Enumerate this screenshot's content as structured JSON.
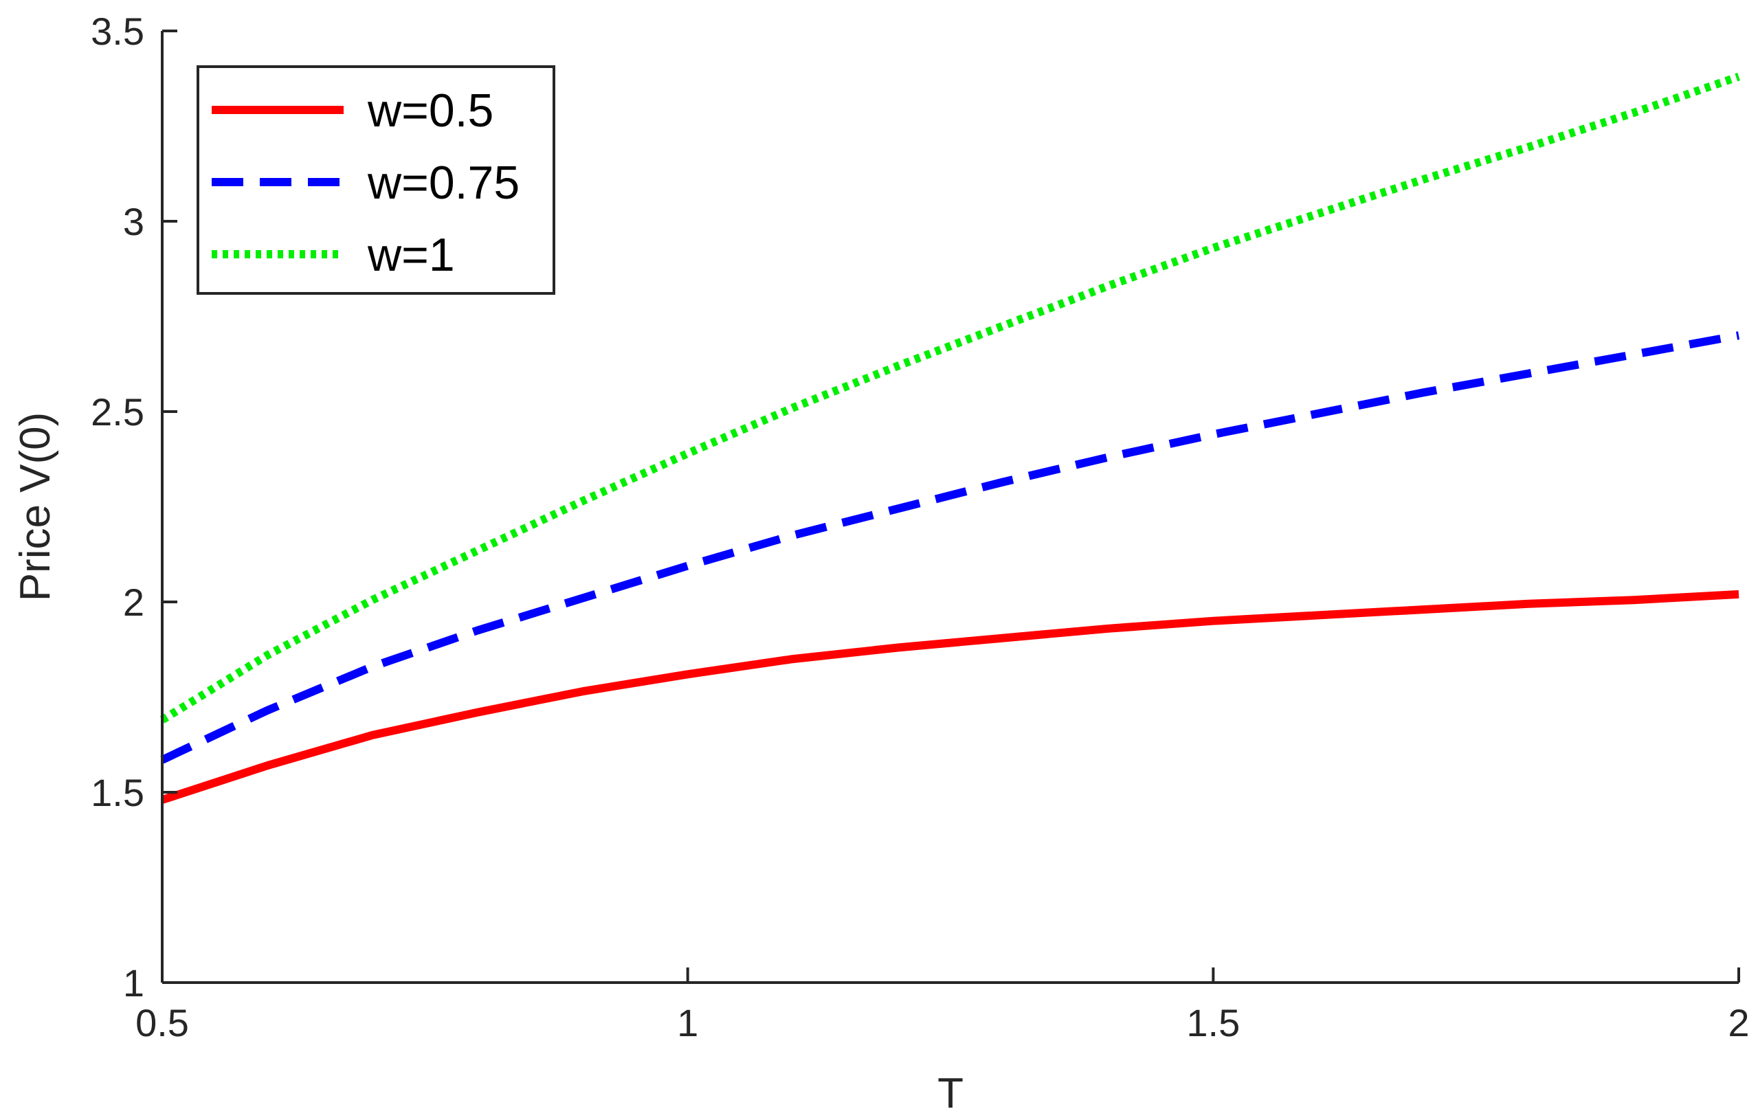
{
  "chart_data": {
    "type": "line",
    "xlabel": "T",
    "ylabel": "Price V(0)",
    "xlim": [
      0.5,
      2
    ],
    "ylim": [
      1,
      3.5
    ],
    "xticks": [
      "0.5",
      "1",
      "1.5",
      "2"
    ],
    "yticks": [
      "1",
      "1.5",
      "2",
      "2.5",
      "3",
      "3.5"
    ],
    "grid": false,
    "legend_position": "top-left",
    "x": [
      0.5,
      0.6,
      0.7,
      0.8,
      0.9,
      1.0,
      1.1,
      1.2,
      1.3,
      1.4,
      1.5,
      1.6,
      1.7,
      1.8,
      1.9,
      2.0
    ],
    "series": [
      {
        "name": "w=0.5",
        "color": "#ff0000",
        "style": "solid",
        "values": [
          1.48,
          1.57,
          1.65,
          1.71,
          1.765,
          1.81,
          1.85,
          1.88,
          1.905,
          1.93,
          1.95,
          1.965,
          1.98,
          1.995,
          2.005,
          2.02
        ]
      },
      {
        "name": "w=0.75",
        "color": "#0000ff",
        "style": "dashed",
        "values": [
          1.585,
          1.715,
          1.83,
          1.925,
          2.01,
          2.095,
          2.175,
          2.245,
          2.315,
          2.38,
          2.44,
          2.495,
          2.55,
          2.6,
          2.65,
          2.7
        ]
      },
      {
        "name": "w=1",
        "color": "#00ee00",
        "style": "dotted",
        "values": [
          1.69,
          1.86,
          2.005,
          2.135,
          2.265,
          2.39,
          2.51,
          2.62,
          2.725,
          2.83,
          2.93,
          3.02,
          3.11,
          3.195,
          3.285,
          3.38
        ]
      }
    ]
  }
}
